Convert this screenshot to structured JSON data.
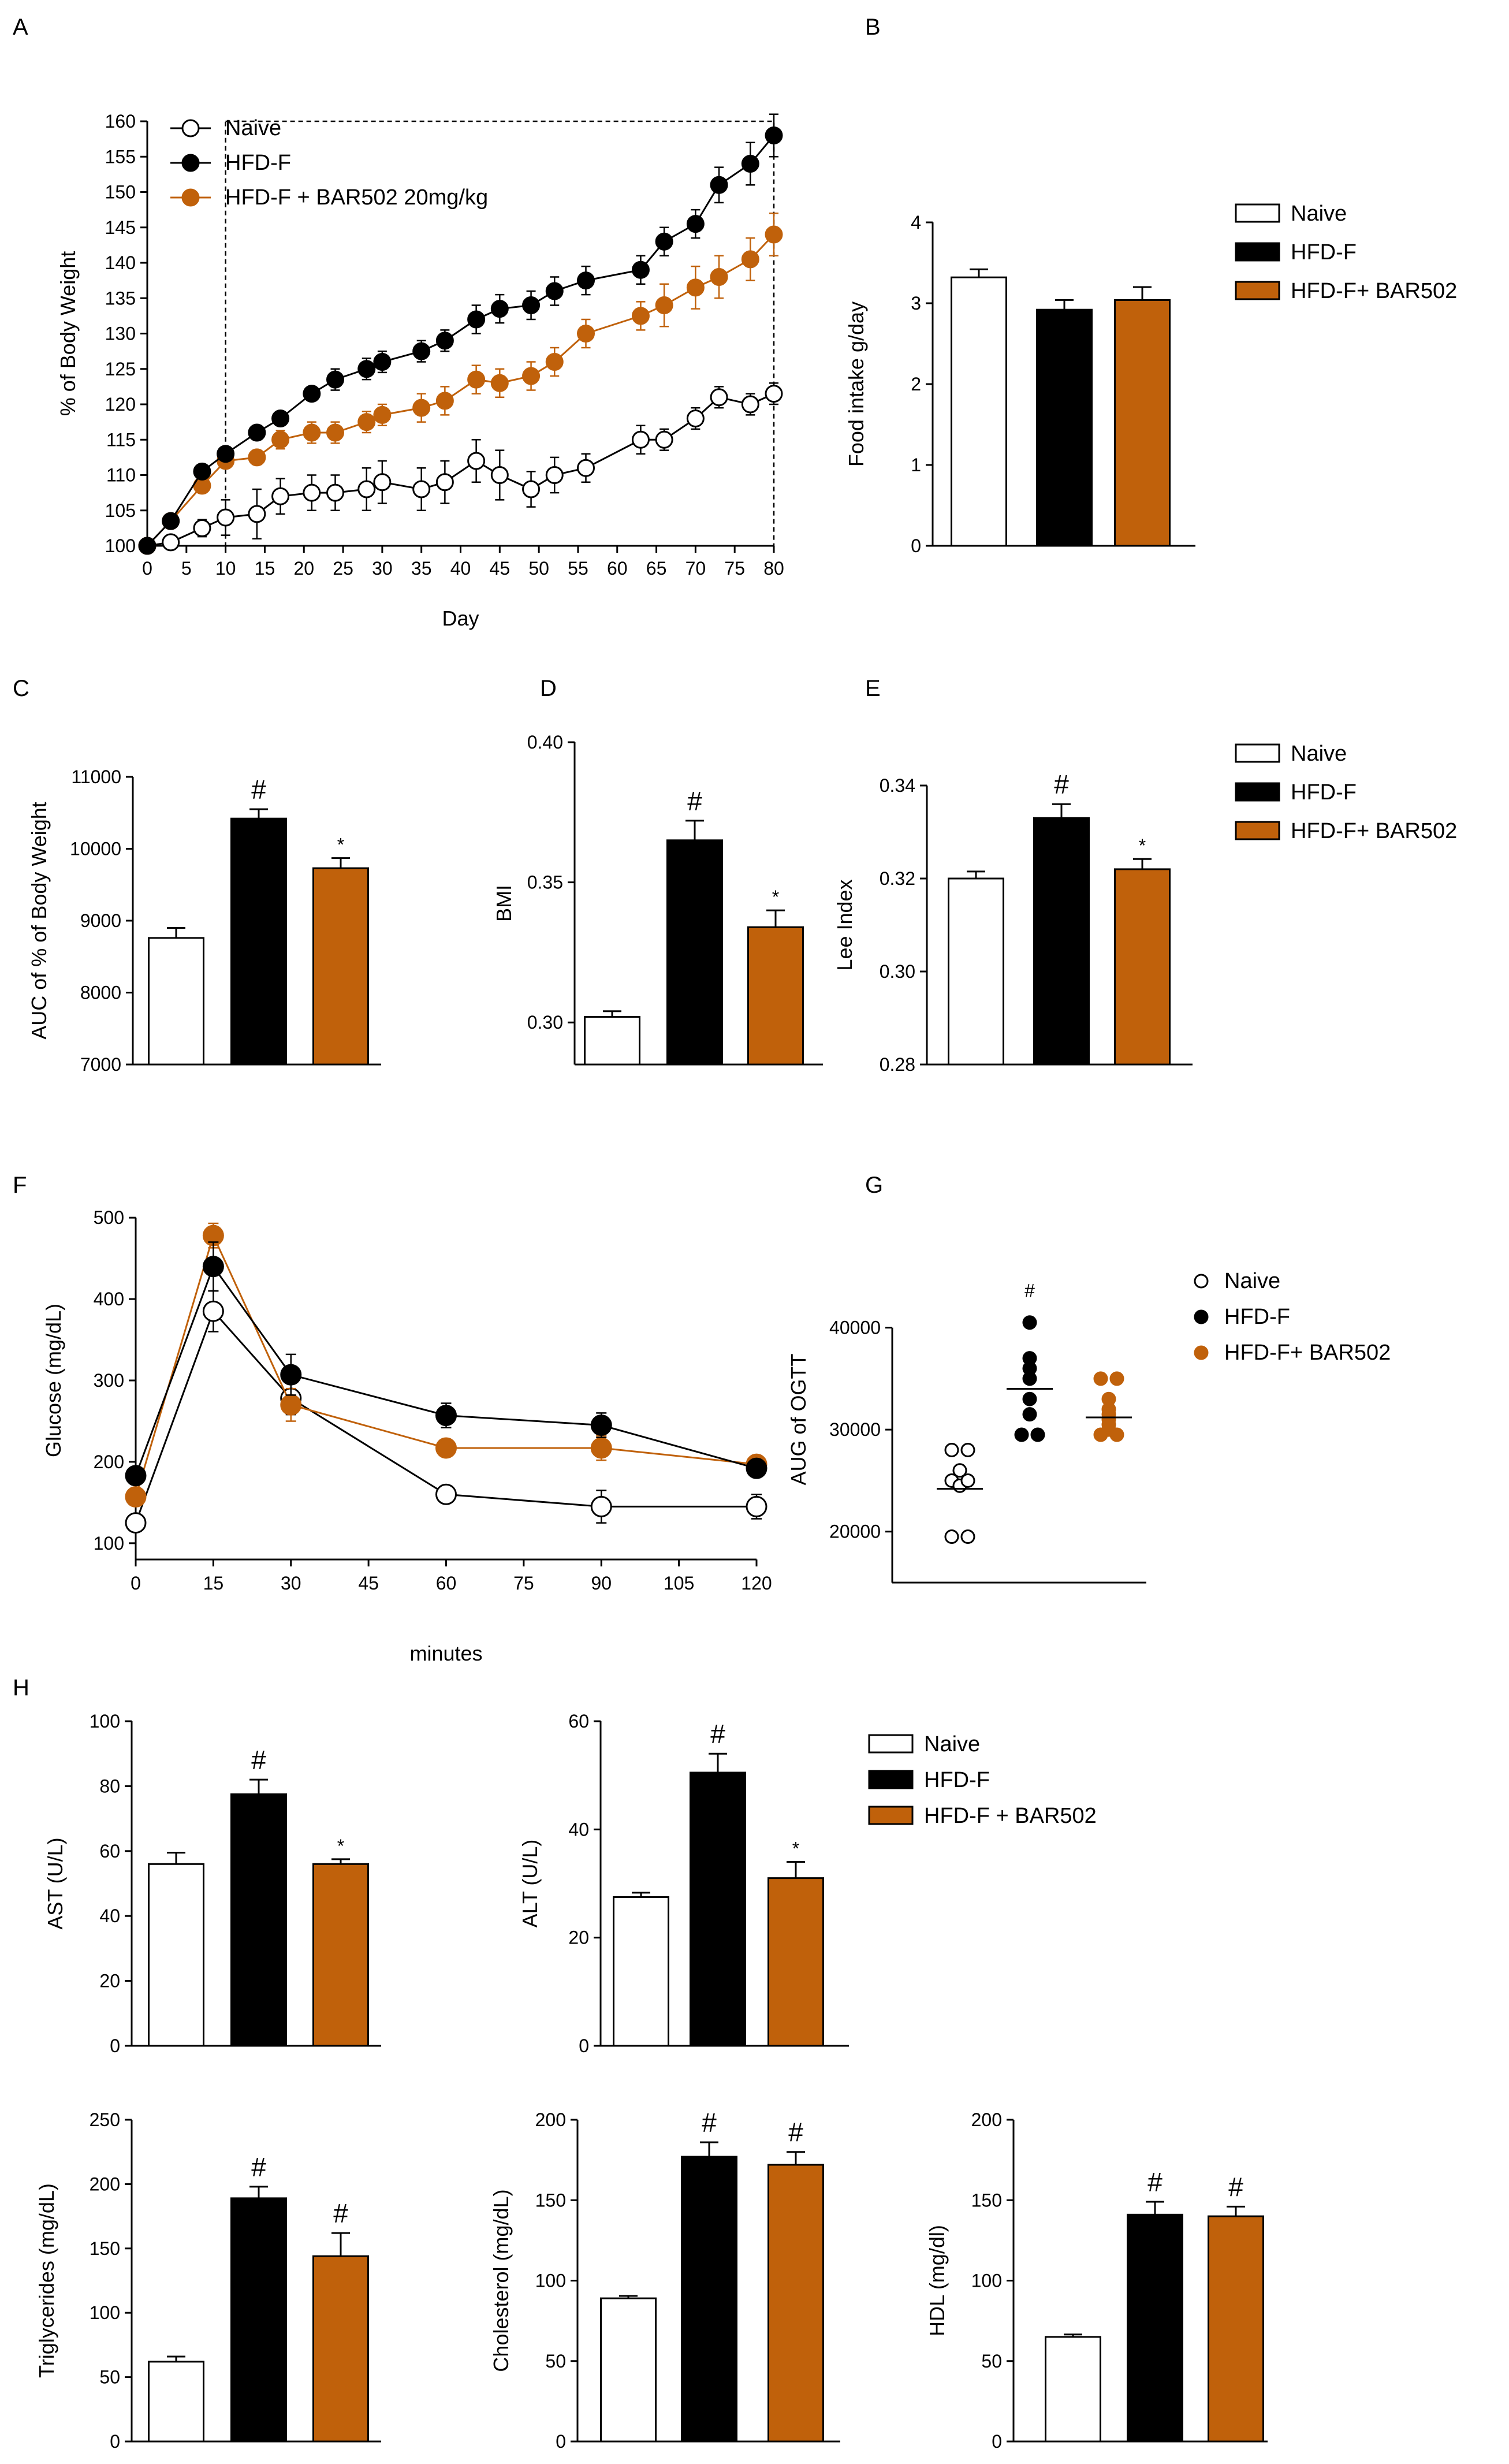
{
  "colors": {
    "naive": "#ffffff",
    "hfd": "#000000",
    "bar502": "#c0610b",
    "axis": "#000000"
  },
  "chart_data": [
    {
      "id": "A",
      "type": "line",
      "panel_label": "A",
      "title": "",
      "xlabel": "Day",
      "ylabel": "% of Body Weight",
      "xlim": [
        0,
        80
      ],
      "ylim": [
        100,
        160
      ],
      "x_ticks": [
        0,
        5,
        10,
        15,
        20,
        25,
        30,
        35,
        40,
        45,
        50,
        55,
        60,
        65,
        70,
        75,
        80
      ],
      "y_ticks": [
        100,
        105,
        110,
        115,
        120,
        125,
        130,
        135,
        140,
        145,
        150,
        155,
        160
      ],
      "legend": [
        "Naive",
        "HFD-F",
        "HFD-F + BAR502 20mg/kg"
      ],
      "series": [
        {
          "name": "Naive",
          "x": [
            0,
            3,
            7,
            10,
            14,
            17,
            21,
            24,
            28,
            30,
            35,
            38,
            42,
            45,
            49,
            52,
            56,
            63,
            66,
            70,
            73,
            77,
            80
          ],
          "values": [
            100,
            100.5,
            102.5,
            104,
            104.5,
            107,
            107.5,
            107.5,
            108,
            109,
            108,
            109,
            112,
            110,
            108,
            110,
            111,
            115,
            115,
            118,
            121,
            120,
            121.5
          ],
          "errors": [
            0.3,
            0.6,
            1.2,
            2.5,
            3.5,
            2.5,
            2.5,
            2.5,
            3,
            3,
            3,
            3,
            3,
            3.5,
            2.5,
            2.5,
            2,
            2,
            1.5,
            1.5,
            1.5,
            1.5,
            1.5
          ]
        },
        {
          "name": "HFD-F",
          "x": [
            0,
            3,
            7,
            10,
            14,
            17,
            21,
            24,
            28,
            30,
            35,
            38,
            42,
            45,
            49,
            52,
            56,
            63,
            66,
            70,
            73,
            77,
            80
          ],
          "values": [
            100,
            103.5,
            110.5,
            113,
            116,
            118,
            121.5,
            123.5,
            125,
            126,
            127.5,
            129,
            132,
            133.5,
            134,
            136,
            137.5,
            139,
            143,
            145.5,
            151,
            154,
            158
          ],
          "errors": [
            0.3,
            0.6,
            0.8,
            1,
            1,
            1,
            1,
            1.5,
            1.5,
            1.5,
            1.5,
            1.5,
            2,
            2,
            2,
            2,
            2,
            2,
            2,
            2,
            2.5,
            3,
            3
          ]
        },
        {
          "name": "HFD-F + BAR502 20mg/kg",
          "x": [
            0,
            3,
            7,
            10,
            14,
            17,
            21,
            24,
            28,
            30,
            35,
            38,
            42,
            45,
            49,
            52,
            56,
            63,
            66,
            70,
            73,
            77,
            80
          ],
          "values": [
            100,
            103.5,
            108.5,
            112,
            112.5,
            115,
            116,
            116,
            117.5,
            118.5,
            119.5,
            120.5,
            123.5,
            123,
            124,
            126,
            130,
            132.5,
            134,
            136.5,
            138,
            140.5,
            144
          ],
          "errors": [
            0.3,
            0.6,
            0.8,
            1,
            1,
            1.3,
            1.5,
            1.5,
            1.5,
            1.5,
            2,
            2,
            2,
            2,
            2,
            2,
            2,
            2,
            3,
            3,
            3,
            3,
            3
          ]
        }
      ],
      "annotation": "dashed box from day 10 to day 80"
    },
    {
      "id": "B",
      "type": "bar",
      "panel_label": "B",
      "title": "",
      "xlabel": "",
      "ylabel": "Food intake g/day",
      "ylim": [
        0,
        4
      ],
      "y_ticks": [
        0,
        1,
        2,
        3,
        4
      ],
      "categories": [
        "Naive",
        "HFD-F",
        "HFD-F+ BAR502"
      ],
      "values": [
        3.32,
        2.92,
        3.04
      ],
      "errors": [
        0.1,
        0.12,
        0.16
      ],
      "marks": [
        "",
        "",
        ""
      ],
      "legend": [
        "Naive",
        "HFD-F",
        "HFD-F+ BAR502"
      ]
    },
    {
      "id": "C",
      "type": "bar",
      "panel_label": "C",
      "title": "",
      "xlabel": "",
      "ylabel": "AUC of % of Body Weight",
      "ylim": [
        7000,
        11000
      ],
      "y_ticks": [
        7000,
        8000,
        9000,
        10000,
        11000
      ],
      "categories": [
        "Naive",
        "HFD-F",
        "HFD-F+ BAR502"
      ],
      "values": [
        8760,
        10420,
        9730
      ],
      "errors": [
        140,
        130,
        140
      ],
      "marks": [
        "",
        "#",
        "*"
      ]
    },
    {
      "id": "D",
      "type": "bar",
      "panel_label": "D",
      "title": "",
      "xlabel": "",
      "ylabel": "BMI",
      "ylim": [
        0.285,
        0.4
      ],
      "y_ticks": [
        0.3,
        0.35,
        0.4
      ],
      "y_tick_labels": [
        "0.30",
        "0.35",
        "0.40"
      ],
      "categories": [
        "Naive",
        "HFD-F",
        "HFD-F+ BAR502"
      ],
      "values": [
        0.302,
        0.365,
        0.334
      ],
      "errors": [
        0.002,
        0.007,
        0.006
      ],
      "marks": [
        "",
        "#",
        "*"
      ]
    },
    {
      "id": "E",
      "type": "bar",
      "panel_label": "E",
      "title": "",
      "xlabel": "",
      "ylabel": "Lee Index",
      "ylim": [
        0.28,
        0.34
      ],
      "y_ticks": [
        0.28,
        0.3,
        0.32,
        0.34
      ],
      "y_tick_labels": [
        "0.28",
        "0.30",
        "0.32",
        "0.34"
      ],
      "categories": [
        "Naive",
        "HFD-F",
        "HFD-F+ BAR502"
      ],
      "values": [
        0.32,
        0.333,
        0.322
      ],
      "errors": [
        0.0015,
        0.003,
        0.0022
      ],
      "marks": [
        "",
        "#",
        "*"
      ],
      "legend": [
        "Naive",
        "HFD-F",
        "HFD-F+ BAR502"
      ]
    },
    {
      "id": "F",
      "type": "line",
      "panel_label": "F",
      "title": "",
      "xlabel": "minutes",
      "ylabel": "Glucose (mg/dL)",
      "xlim": [
        0,
        120
      ],
      "ylim": [
        80,
        520
      ],
      "x_ticks": [
        0,
        15,
        30,
        45,
        60,
        75,
        90,
        105,
        120
      ],
      "y_ticks": [
        100,
        200,
        300,
        400,
        500
      ],
      "series": [
        {
          "name": "Naive",
          "x": [
            0,
            15,
            30,
            60,
            90,
            120
          ],
          "values": [
            125,
            385,
            278,
            160,
            145,
            145
          ],
          "errors": [
            10,
            25,
            20,
            10,
            20,
            15
          ]
        },
        {
          "name": "HFD-F",
          "x": [
            0,
            15,
            30,
            60,
            90,
            120
          ],
          "values": [
            183,
            440,
            307,
            257,
            245,
            192
          ],
          "errors": [
            8,
            30,
            25,
            15,
            15,
            8
          ]
        },
        {
          "name": "HFD-F+ BAR502",
          "x": [
            0,
            15,
            30,
            60,
            90,
            120
          ],
          "values": [
            157,
            478,
            270,
            217,
            217,
            197
          ],
          "errors": [
            8,
            15,
            20,
            10,
            15,
            8
          ]
        }
      ]
    },
    {
      "id": "G",
      "type": "scatter",
      "panel_label": "G",
      "title": "",
      "xlabel": "",
      "ylabel": "AUG of OGTT",
      "ylim": [
        15000,
        47000
      ],
      "y_ticks": [
        20000,
        30000,
        40000
      ],
      "legend": [
        "Naive",
        "HFD-F",
        "HFD-F+ BAR502"
      ],
      "series": [
        {
          "name": "Naive",
          "points": [
            28000,
            28000,
            26000,
            25000,
            24500,
            25000,
            19500,
            19500
          ],
          "mean": 24200
        },
        {
          "name": "HFD-F",
          "points": [
            40500,
            37000,
            36000,
            35000,
            33000,
            31500,
            29500,
            29500
          ],
          "mean": 34000
        },
        {
          "name": "HFD-F+ BAR502",
          "points": [
            35000,
            35000,
            33000,
            32000,
            31000,
            30000,
            29500,
            29500,
            30500,
            31500
          ],
          "mean": 31200
        }
      ],
      "marks": [
        "",
        "#",
        ""
      ]
    },
    {
      "id": "H-AST",
      "type": "bar",
      "panel_label": "H",
      "title": "",
      "xlabel": "",
      "ylabel": "AST (U/L)",
      "ylim": [
        0,
        100
      ],
      "y_ticks": [
        0,
        20,
        40,
        60,
        80,
        100
      ],
      "categories": [
        "Naive",
        "HFD-F",
        "HFD-F + BAR502"
      ],
      "values": [
        56,
        77.5,
        56
      ],
      "errors": [
        3.5,
        4.5,
        1.5
      ],
      "marks": [
        "",
        "#",
        "*"
      ],
      "legend": [
        "Naive",
        "HFD-F",
        "HFD-F + BAR502"
      ]
    },
    {
      "id": "H-ALT",
      "type": "bar",
      "panel_label": "",
      "title": "",
      "xlabel": "",
      "ylabel": "ALT (U/L)",
      "ylim": [
        0,
        60
      ],
      "y_ticks": [
        0,
        20,
        40,
        60
      ],
      "categories": [
        "Naive",
        "HFD-F",
        "HFD-F + BAR502"
      ],
      "values": [
        27.5,
        50.5,
        31
      ],
      "errors": [
        0.8,
        3.5,
        3
      ],
      "marks": [
        "",
        "#",
        "*"
      ]
    },
    {
      "id": "H-TG",
      "type": "bar",
      "panel_label": "",
      "title": "",
      "xlabel": "",
      "ylabel": "Triglycerides (mg/dL)",
      "ylim": [
        0,
        250
      ],
      "y_ticks": [
        0,
        50,
        100,
        150,
        200,
        250
      ],
      "categories": [
        "Naive",
        "HFD-F",
        "HFD-F + BAR502"
      ],
      "values": [
        62,
        189,
        144
      ],
      "errors": [
        4,
        9,
        18
      ],
      "marks": [
        "",
        "#",
        "#"
      ]
    },
    {
      "id": "H-CHOL",
      "type": "bar",
      "panel_label": "",
      "title": "",
      "xlabel": "",
      "ylabel": "Cholesterol (mg/dL)",
      "ylim": [
        0,
        200
      ],
      "y_ticks": [
        0,
        50,
        100,
        150,
        200
      ],
      "categories": [
        "Naive",
        "HFD-F",
        "HFD-F + BAR502"
      ],
      "values": [
        89,
        177,
        172
      ],
      "errors": [
        1.5,
        9,
        8
      ],
      "marks": [
        "",
        "#",
        "#"
      ]
    },
    {
      "id": "H-HDL",
      "type": "bar",
      "panel_label": "",
      "title": "",
      "xlabel": "",
      "ylabel": "HDL (mg/dl)",
      "ylim": [
        0,
        200
      ],
      "y_ticks": [
        0,
        50,
        100,
        150,
        200
      ],
      "categories": [
        "Naive",
        "HFD-F",
        "HFD-F + BAR502"
      ],
      "values": [
        65,
        141,
        140
      ],
      "errors": [
        1.5,
        8,
        6
      ],
      "marks": [
        "",
        "#",
        "#"
      ]
    }
  ]
}
